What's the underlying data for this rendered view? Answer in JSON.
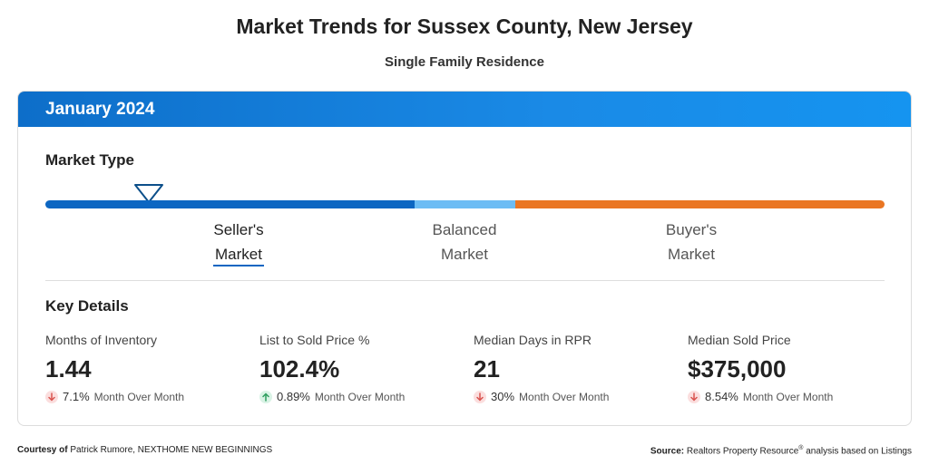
{
  "title": "Market Trends for Sussex County, New Jersey",
  "subtitle": "Single Family Residence",
  "period": "January 2024",
  "market_type": {
    "heading": "Market Type",
    "segments": [
      {
        "label": "Seller's\nMarket",
        "color": "#0c66c2"
      },
      {
        "label": "Balanced\nMarket",
        "color": "#6cbcf4"
      },
      {
        "label": "Buyer's\nMarket",
        "color": "#ea7623"
      }
    ],
    "indicator_icon": "triangle-down-icon",
    "selected": "Seller's Market"
  },
  "key_details": {
    "heading": "Key Details",
    "metrics": [
      {
        "label": "Months of Inventory",
        "value": "1.44",
        "direction": "down",
        "change": "7.1%",
        "change_text": "Month Over Month"
      },
      {
        "label": "List to Sold Price %",
        "value": "102.4%",
        "direction": "up",
        "change": "0.89%",
        "change_text": "Month Over Month"
      },
      {
        "label": "Median Days in RPR",
        "value": "21",
        "direction": "down",
        "change": "30%",
        "change_text": "Month Over Month"
      },
      {
        "label": "Median Sold Price",
        "value": "$375,000",
        "direction": "down",
        "change": "8.54%",
        "change_text": "Month Over Month"
      }
    ]
  },
  "footer": {
    "courtesy_label": "Courtesy of",
    "courtesy_name": "Patrick Rumore, NEXTHOME NEW BEGINNINGS",
    "source_label": "Source:",
    "source_text": "Realtors Property Resource",
    "source_reg": "®",
    "source_suffix": "analysis based on Listings"
  },
  "colors": {
    "header_blue": "#0d6ec9",
    "down_red": "#d9534f",
    "up_green": "#2e9e5e"
  }
}
